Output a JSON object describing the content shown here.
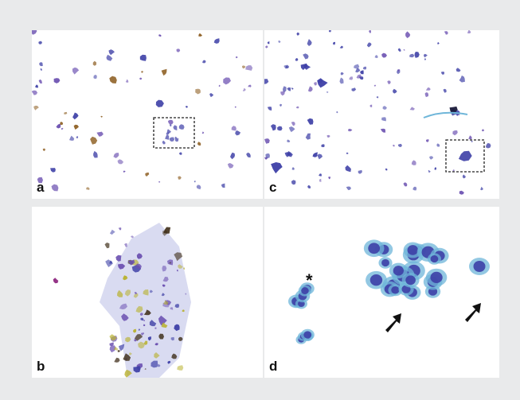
{
  "figure": {
    "panels": [
      {
        "id": "a",
        "label": "a",
        "content": "low-power-smear-with-brown-granules"
      },
      {
        "id": "b",
        "label": "b",
        "content": "high-power-cell-sheet-with-yellow-pigment"
      },
      {
        "id": "c",
        "label": "c",
        "content": "low-power-smear-blue-clusters"
      },
      {
        "id": "d",
        "label": "d",
        "content": "high-power-cell-clusters-with-arrows"
      }
    ],
    "annotations": {
      "asterisk": "*",
      "arrows": [
        "arrow-left-cluster",
        "arrow-single-cell"
      ]
    },
    "colors": {
      "background": "#e9eaeb",
      "panel": "#ffffff",
      "stain_blue": "#3d3fa6",
      "stain_purple": "#6a4fb0",
      "stain_cyan": "#6fb6d9",
      "pigment_brown": "#8a5a1c",
      "pigment_yellow": "#b7b02a"
    }
  }
}
